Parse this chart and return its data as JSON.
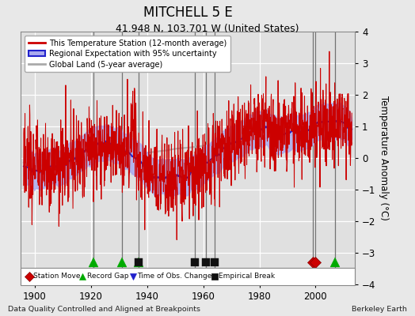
{
  "title": "MITCHELL 5 E",
  "subtitle": "41.948 N, 103.701 W (United States)",
  "xlabel_note": "Data Quality Controlled and Aligned at Breakpoints",
  "xlabel_right": "Berkeley Earth",
  "ylabel": "Temperature Anomaly (°C)",
  "ylim": [
    -4,
    4
  ],
  "xlim": [
    1895,
    2014
  ],
  "xticks": [
    1900,
    1920,
    1940,
    1960,
    1980,
    2000
  ],
  "yticks": [
    -4,
    -3,
    -2,
    -1,
    0,
    1,
    2,
    3,
    4
  ],
  "bg_color": "#e8e8e8",
  "plot_bg_color": "#e0e0e0",
  "grid_color": "#ffffff",
  "station_line_color": "#cc0000",
  "regional_line_color": "#2222cc",
  "regional_fill_color": "#aaaaee",
  "global_line_color": "#aaaaaa",
  "station_moves": [
    1999,
    2000
  ],
  "record_gaps": [
    1921,
    1931,
    1937,
    2007
  ],
  "obs_changes": [],
  "emp_breaks": [
    1937,
    1957,
    1961,
    1964
  ],
  "vline_years": [
    1921,
    1931,
    1937,
    1957,
    1961,
    1964,
    1999,
    2000,
    2007
  ],
  "title_fontsize": 12,
  "subtitle_fontsize": 9,
  "tick_fontsize": 8.5,
  "ylabel_fontsize": 8.5
}
